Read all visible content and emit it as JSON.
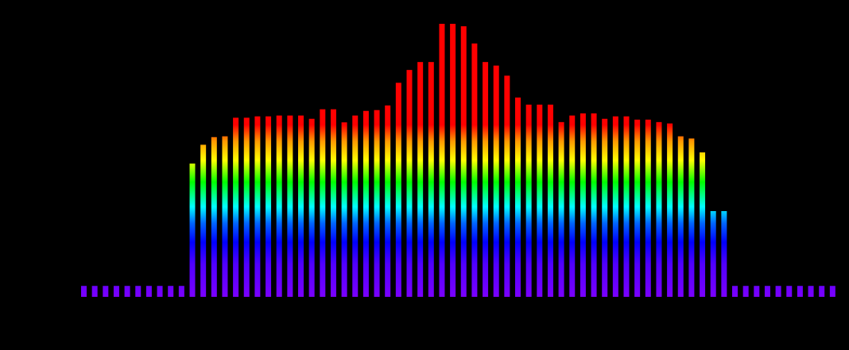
{
  "chart_data": {
    "type": "bar",
    "title": "",
    "xlabel": "",
    "ylabel": "",
    "ylim": [
      0,
      100
    ],
    "grid": false,
    "legend": "none",
    "background": "#000000",
    "gradient_stops": [
      {
        "at": 0,
        "color": "#7a00ff"
      },
      {
        "at": 12,
        "color": "#5000ff"
      },
      {
        "at": 20,
        "color": "#0000ff"
      },
      {
        "at": 27,
        "color": "#0066ff"
      },
      {
        "at": 33,
        "color": "#00ffff"
      },
      {
        "at": 42,
        "color": "#00ff00"
      },
      {
        "at": 50,
        "color": "#ffff00"
      },
      {
        "at": 57,
        "color": "#ff9900"
      },
      {
        "at": 63,
        "color": "#ff0000"
      },
      {
        "at": 100,
        "color": "#ff0000"
      }
    ],
    "values": [
      4.0,
      4.0,
      4.0,
      4.0,
      4.0,
      4.0,
      4.0,
      4.0,
      4.0,
      4.0,
      48.8,
      55.7,
      58.5,
      58.8,
      65.6,
      65.6,
      66.1,
      66.1,
      66.4,
      66.4,
      66.4,
      65.2,
      68.7,
      68.7,
      63.9,
      66.4,
      68.1,
      68.4,
      70.1,
      78.4,
      83.1,
      86.0,
      86.0,
      100.0,
      100.0,
      99.1,
      92.8,
      86.0,
      84.7,
      81.0,
      73.0,
      70.4,
      70.4,
      70.4,
      64.0,
      66.4,
      67.2,
      67.2,
      65.2,
      66.1,
      66.1,
      64.9,
      64.9,
      64.0,
      63.5,
      58.8,
      58.0,
      52.9,
      31.4,
      31.4,
      4.0,
      4.0,
      4.0,
      4.0,
      4.0,
      4.0,
      4.0,
      4.0,
      4.0,
      4.0
    ]
  }
}
